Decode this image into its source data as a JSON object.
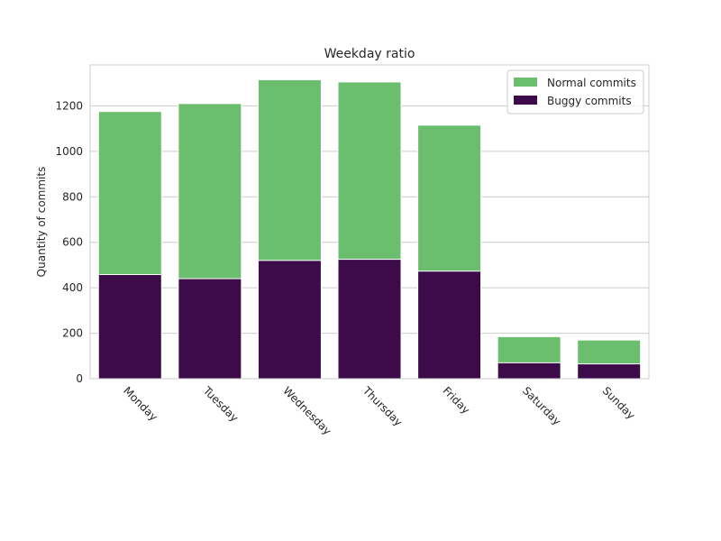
{
  "chart_data": {
    "type": "bar",
    "title": "Weekday ratio",
    "xlabel": "",
    "ylabel": "Quantity of commits",
    "categories": [
      "Monday",
      "Tuesday",
      "Wednesday",
      "Thursday",
      "Friday",
      "Saturday",
      "Sunday"
    ],
    "series": [
      {
        "name": "Normal commits",
        "values": [
          1175,
          1210,
          1315,
          1305,
          1115,
          185,
          170
        ],
        "color": "#6abe6e"
      },
      {
        "name": "Buggy commits",
        "values": [
          458,
          440,
          520,
          525,
          473,
          70,
          65
        ],
        "color": "#3d0a4a"
      }
    ],
    "bar_mode": "overlay",
    "yticks": [
      0,
      200,
      400,
      600,
      800,
      1000,
      1200
    ],
    "ylim": [
      0,
      1380
    ],
    "grid": "horizontal",
    "legend_position": "top-right",
    "xtick_rotation": "-45"
  }
}
